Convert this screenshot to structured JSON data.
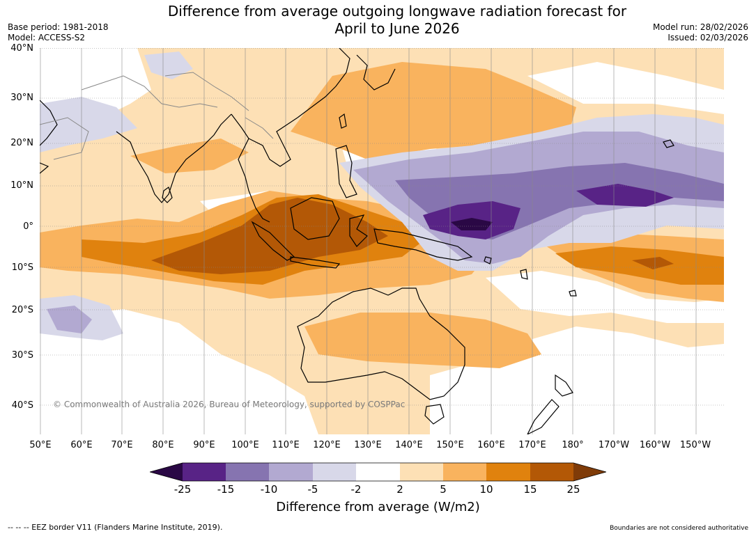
{
  "title_line1": "Difference from average outgoing longwave radiation forecast for",
  "title_line2": "April to June 2026",
  "base_period": "Base period: 1981-2018",
  "model": "Model: ACCESS-S2",
  "model_run": "Model run: 28/02/2026",
  "issued": "Issued: 02/03/2026",
  "lat_labels": [
    "40°N",
    "30°N",
    "20°N",
    "10°N",
    "0°",
    "10°S",
    "20°S",
    "30°S",
    "40°S"
  ],
  "lon_labels": [
    "50°E",
    "60°E",
    "70°E",
    "80°E",
    "90°E",
    "100°E",
    "110°E",
    "120°E",
    "130°E",
    "140°E",
    "150°E",
    "160°E",
    "170°E",
    "180°",
    "170°W",
    "160°W",
    "150°W"
  ],
  "copyright": "© Commonwealth of Australia 2026, Bureau of Meteorology, supported by COSPPac",
  "colorbar": {
    "ticks": [
      "-25",
      "-15",
      "-10",
      "-5",
      "-2",
      "2",
      "5",
      "10",
      "15",
      "25"
    ],
    "title": "Difference from average (W/m2)",
    "colors": [
      "#2a0845",
      "#582386",
      "#8674b0",
      "#b2a9d1",
      "#d8d8e9",
      "#ffffff",
      "#fde0b5",
      "#f9b35e",
      "#e0820e",
      "#b35806",
      "#7f3b08"
    ]
  },
  "footer_left": "--  --  -- EEZ border V11 (Flanders Marine Institute, 2019).",
  "footer_right": "Boundaries are not considered authoritative"
}
